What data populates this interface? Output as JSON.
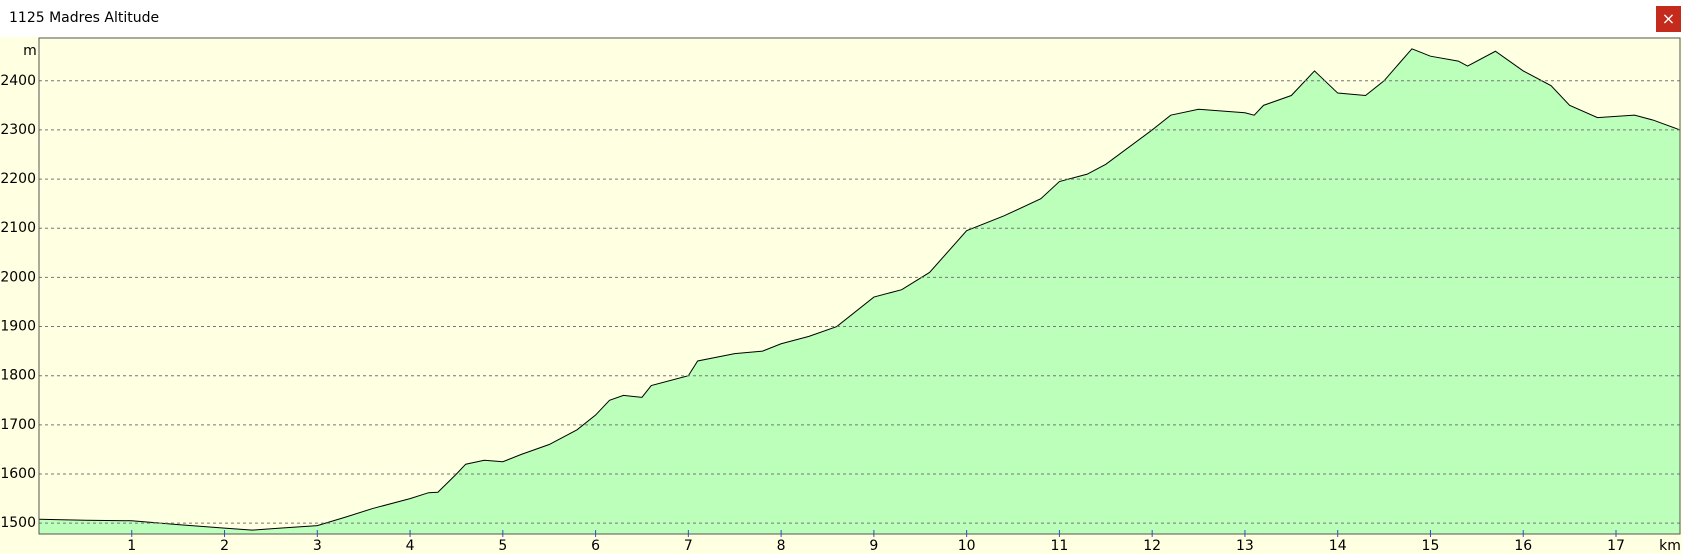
{
  "close_label": "×",
  "chart_data": {
    "type": "area",
    "title": "1125 Madres Altitude",
    "y_label": "m",
    "x_label": "km",
    "x": [
      0,
      0.5,
      1,
      1.5,
      2,
      2.3,
      2.6,
      3,
      3.3,
      3.6,
      4,
      4.2,
      4.3,
      4.5,
      4.6,
      4.8,
      5,
      5.2,
      5.5,
      5.8,
      6,
      6.15,
      6.3,
      6.5,
      6.6,
      7,
      7.1,
      7.5,
      7.8,
      8,
      8.3,
      8.6,
      9,
      9.3,
      9.6,
      10,
      10.4,
      10.8,
      11,
      11.3,
      11.5,
      12,
      12.2,
      12.5,
      13,
      13.1,
      13.2,
      13.5,
      13.75,
      14,
      14.3,
      14.5,
      14.8,
      15,
      15.3,
      15.4,
      15.7,
      16,
      16.3,
      16.5,
      16.8,
      17.2,
      17.4,
      17.69
    ],
    "values": [
      1508,
      1506,
      1505,
      1497,
      1490,
      1486,
      1490,
      1495,
      1512,
      1530,
      1550,
      1562,
      1563,
      1600,
      1620,
      1628,
      1625,
      1640,
      1660,
      1690,
      1720,
      1750,
      1760,
      1756,
      1780,
      1800,
      1830,
      1845,
      1850,
      1865,
      1880,
      1900,
      1960,
      1975,
      2010,
      2095,
      2125,
      2160,
      2195,
      2210,
      2230,
      2300,
      2330,
      2342,
      2335,
      2330,
      2350,
      2370,
      2420,
      2375,
      2370,
      2400,
      2465,
      2450,
      2440,
      2430,
      2460,
      2420,
      2390,
      2350,
      2325,
      2330,
      2320,
      2300
    ],
    "fill_color": "#bbffbb",
    "line_color": "#000000",
    "background": "#ffffe1",
    "xlim": [
      0,
      17.69
    ],
    "xticks": [
      1,
      2,
      3,
      4,
      5,
      6,
      7,
      8,
      9,
      10,
      11,
      12,
      13,
      14,
      15,
      16,
      17
    ],
    "ylim": [
      1478,
      2487
    ],
    "yticks": [
      1500,
      1600,
      1700,
      1800,
      1900,
      2000,
      2100,
      2200,
      2300,
      2400
    ],
    "grid": true
  }
}
